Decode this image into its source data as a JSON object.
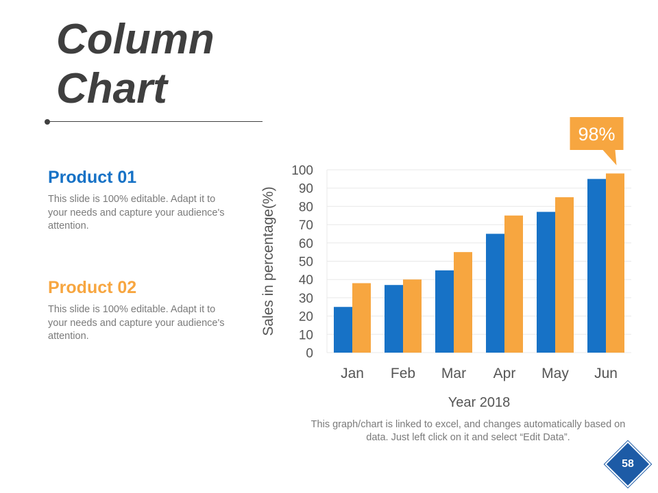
{
  "slide": {
    "title_line1": "Column",
    "title_line2": "Chart",
    "page_number": "58",
    "footnote": "This graph/chart is linked to excel, and changes automatically based on data. Just left click on it and select “Edit Data”."
  },
  "products": [
    {
      "name": "Product 01",
      "description": "This slide is 100% editable. Adapt it to your needs and capture your audience's attention."
    },
    {
      "name": "Product 02",
      "description": "This slide is 100% editable. Adapt it to your needs and capture your audience's attention."
    }
  ],
  "colors": {
    "product_01": "#1772c6",
    "product_02": "#f7a640",
    "callout": "#f7a640",
    "badge": "#1d5ba6"
  },
  "chart_data": {
    "type": "bar",
    "categories": [
      "Jan",
      "Feb",
      "Mar",
      "Apr",
      "May",
      "Jun"
    ],
    "series": [
      {
        "values": [
          25,
          37,
          45,
          65,
          77,
          95
        ],
        "color": "#1772c6"
      },
      {
        "values": [
          38,
          40,
          55,
          75,
          85,
          98
        ],
        "color": "#f7a640"
      }
    ],
    "xlabel": "Year 2018",
    "ylabel": "Sales in percentage(%)",
    "ylim": [
      0,
      100
    ],
    "yticks": [
      0,
      10,
      20,
      30,
      40,
      50,
      60,
      70,
      80,
      90,
      100
    ],
    "grid": true,
    "legend": "none",
    "callout": {
      "text": "98%",
      "category": "Jun",
      "series": 1
    }
  }
}
